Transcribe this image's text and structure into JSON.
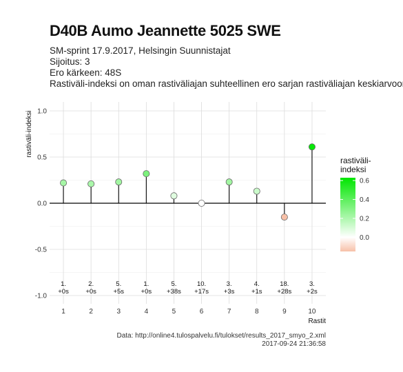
{
  "chart_data": {
    "type": "scatter",
    "title": "D40B Aumo Jeannette 5025 SWE",
    "subtitle_lines": [
      "SM-sprint 17.9.2017, Helsingin Suunnistajat",
      "Sijoitus: 3",
      "Ero kärkeen: 48S",
      "Rastiväli-indeksi on oman rastiväliajan suhteellinen ero sarjan rastiväliajan keskiarvoon"
    ],
    "xlabel": "Rastit",
    "ylabel": "rastiväli-indeksi",
    "xlim": [
      0.5,
      10.5
    ],
    "ylim": [
      -1.0,
      1.05
    ],
    "x_ticks": [
      "1",
      "2",
      "3",
      "4",
      "5",
      "6",
      "7",
      "8",
      "9",
      "10"
    ],
    "y_ticks": [
      "1.0",
      "0.5",
      "0.0",
      "-0.5",
      "-1.0"
    ],
    "y_tick_values": [
      1.0,
      0.5,
      0.0,
      -0.5,
      -1.0
    ],
    "grid": true,
    "points": [
      {
        "x": 1,
        "y": 0.22,
        "rank": "1.",
        "diff": "+0s"
      },
      {
        "x": 2,
        "y": 0.21,
        "rank": "2.",
        "diff": "+0s"
      },
      {
        "x": 3,
        "y": 0.23,
        "rank": "5.",
        "diff": "+5s"
      },
      {
        "x": 4,
        "y": 0.32,
        "rank": "1.",
        "diff": "+0s"
      },
      {
        "x": 5,
        "y": 0.08,
        "rank": "5.",
        "diff": "+38s"
      },
      {
        "x": 6,
        "y": 0.0,
        "rank": "10.",
        "diff": "+17s"
      },
      {
        "x": 7,
        "y": 0.23,
        "rank": "3.",
        "diff": "+3s"
      },
      {
        "x": 8,
        "y": 0.13,
        "rank": "4.",
        "diff": "+1s"
      },
      {
        "x": 9,
        "y": -0.15,
        "rank": "18.",
        "diff": "+28s"
      },
      {
        "x": 10,
        "y": 0.61,
        "rank": "3.",
        "diff": "+2s"
      }
    ],
    "legend": {
      "title_lines": [
        "rastiväli-",
        "indeksi"
      ],
      "position": "right",
      "ticks": [
        "0.6",
        "0.4",
        "0.2",
        "0.0"
      ],
      "tick_values": [
        0.6,
        0.4,
        0.2,
        0.0
      ],
      "range": [
        -0.15,
        0.63
      ],
      "colors": {
        "low": "#f7c0a8",
        "mid": "#ffffff",
        "high": "#00e600"
      }
    }
  },
  "caption": {
    "source": "Data: http://online4.tulospalvelu.fi/tulokset/results_2017_smyo_2.xml",
    "timestamp": "2017-09-24 21:36:58"
  }
}
